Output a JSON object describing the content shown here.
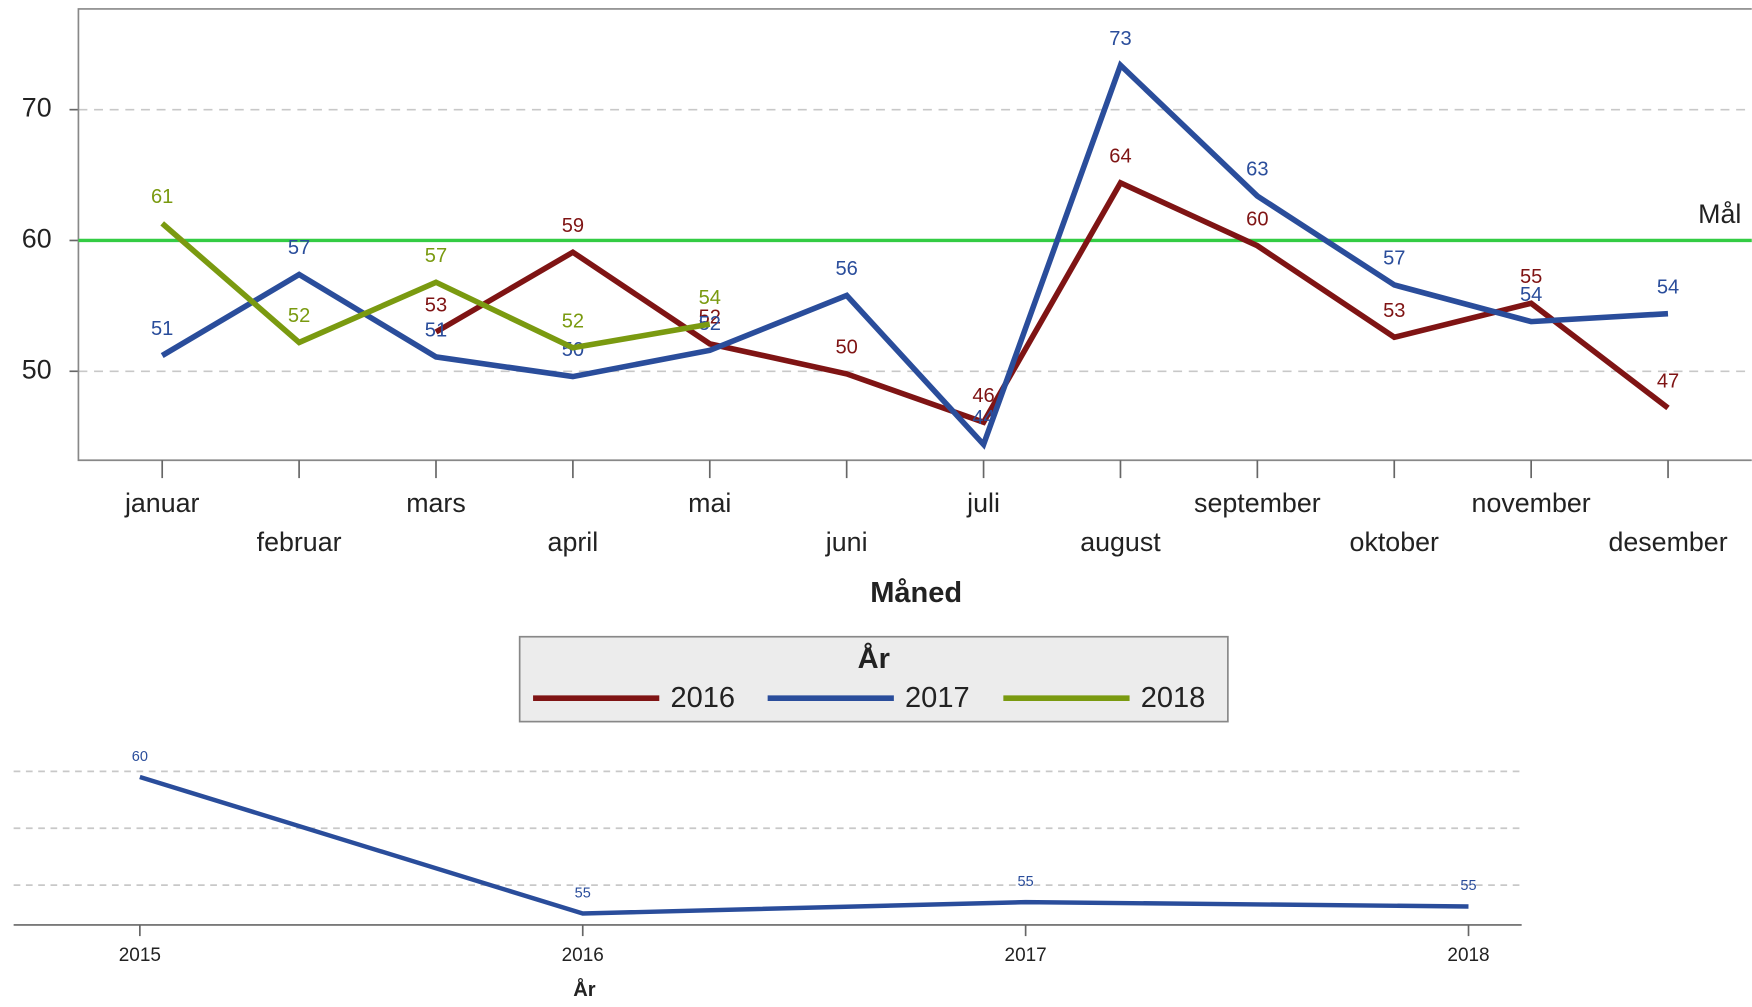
{
  "chart_data": [
    {
      "type": "line",
      "categories": [
        "januar",
        "februar",
        "mars",
        "april",
        "mai",
        "juni",
        "juli",
        "august",
        "september",
        "oktober",
        "november",
        "desember"
      ],
      "series": [
        {
          "name": "2016",
          "color": "#7f1414",
          "values": [
            null,
            null,
            53,
            59.1,
            52.1,
            49.8,
            46.1,
            64.4,
            59.6,
            52.6,
            55.2,
            47.2
          ],
          "value_labels": [
            null,
            null,
            "53",
            "59",
            "52",
            "50",
            "46",
            "64",
            "60",
            "53",
            "55",
            "47"
          ]
        },
        {
          "name": "2017",
          "color": "#2a4d9b",
          "values": [
            51.2,
            57.4,
            51.1,
            49.6,
            51.6,
            55.8,
            44.4,
            73.4,
            63.4,
            56.6,
            53.8,
            54.4
          ],
          "value_labels": [
            "51",
            "57",
            "51",
            "50",
            "52",
            "56",
            "44",
            "73",
            "63",
            "57",
            "54",
            "54"
          ]
        },
        {
          "name": "2018",
          "color": "#7a9a10",
          "values": [
            61.3,
            52.2,
            56.8,
            51.8,
            53.6,
            null,
            null,
            null,
            null,
            null,
            null,
            null
          ],
          "value_labels": [
            "61",
            "52",
            "57",
            "52",
            "54",
            null,
            null,
            null,
            null,
            null,
            null,
            null
          ]
        }
      ],
      "ylim": [
        43.2,
        77.7
      ],
      "yticks": [
        50,
        60,
        70
      ],
      "grid": true,
      "x_label": "Måned",
      "goal": {
        "value": 60,
        "label": "Mål",
        "color": "#33cc44"
      },
      "legend": {
        "title": "År",
        "position": "bottom"
      }
    },
    {
      "type": "line",
      "x": [
        2015,
        2016,
        2017,
        2018
      ],
      "series": [
        {
          "color": "#2a4d9b",
          "values": [
            59.8,
            55.0,
            55.4,
            55.25
          ],
          "value_labels": [
            "60",
            "55",
            "55",
            "55"
          ]
        }
      ],
      "xlim": [
        2014.715,
        2018.12
      ],
      "xticks": [
        2015,
        2016,
        2017,
        2018
      ],
      "ylim": [
        54.6,
        61.2
      ],
      "gridlines": [
        56,
        58,
        60
      ],
      "x_label": "År"
    }
  ]
}
